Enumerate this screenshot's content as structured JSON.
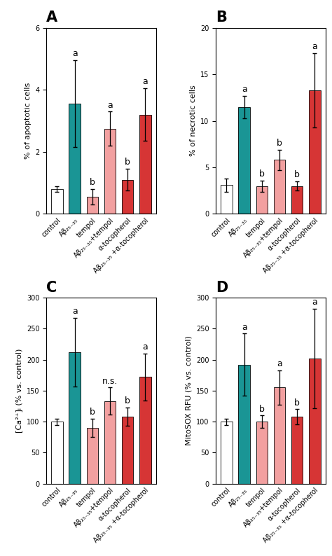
{
  "chart_data": [
    {
      "type": "bar",
      "title": "A",
      "ylabel": "% of apoptotic cells",
      "categories": [
        "control",
        "Aβ₂₅₋₃₅",
        "tempol",
        "Aβ₂₅₋₃₅+tempol",
        "α-tocopherol",
        "Aβ₂₅₋₃₅ +α-tocopherol"
      ],
      "values": [
        0.8,
        3.55,
        0.55,
        2.75,
        1.1,
        3.2
      ],
      "errors": [
        0.1,
        1.4,
        0.25,
        0.55,
        0.35,
        0.85
      ],
      "colors": [
        "#ffffff",
        "#1a9595",
        "#f2a0a0",
        "#f2a0a0",
        "#d63535",
        "#d63535"
      ],
      "annotations": [
        null,
        "a",
        "b",
        "a",
        "b",
        "a"
      ],
      "ylim": [
        0,
        6
      ],
      "yticks": [
        0,
        2,
        4,
        6
      ]
    },
    {
      "type": "bar",
      "title": "B",
      "ylabel": "% of necrotic cells",
      "categories": [
        "control",
        "Aβ₂₅₋₃₅",
        "tempol",
        "Aβ₂₅₋₃₅+tempol",
        "α-tocopherol",
        "Aβ₂₅₋₃₅ +α-tocopherol"
      ],
      "values": [
        3.1,
        11.5,
        3.0,
        5.8,
        3.0,
        13.3
      ],
      "errors": [
        0.7,
        1.2,
        0.6,
        1.1,
        0.5,
        4.0
      ],
      "colors": [
        "#ffffff",
        "#1a9595",
        "#f2a0a0",
        "#f2a0a0",
        "#d63535",
        "#d63535"
      ],
      "annotations": [
        null,
        "a",
        "b",
        "b",
        "b",
        "a"
      ],
      "ylim": [
        0,
        20
      ],
      "yticks": [
        0,
        5,
        10,
        15,
        20
      ]
    },
    {
      "type": "bar",
      "title": "C",
      "ylabel": "[Ca²⁺]ᵢ (% vs. control)",
      "categories": [
        "control",
        "Aβ₂₅₋₃₅",
        "tempol",
        "Aβ₂₅₋₃₅+tempol",
        "α-tocopherol",
        "Aβ₂₅₋₃₅ +α-tocopherol"
      ],
      "values": [
        100,
        212,
        90,
        133,
        108,
        172
      ],
      "errors": [
        5,
        55,
        15,
        22,
        15,
        38
      ],
      "colors": [
        "#ffffff",
        "#1a9595",
        "#f2a0a0",
        "#f2a0a0",
        "#d63535",
        "#d63535"
      ],
      "annotations": [
        null,
        "a",
        "b",
        "n.s.",
        "b",
        "a"
      ],
      "ylim": [
        0,
        300
      ],
      "yticks": [
        0,
        50,
        100,
        150,
        200,
        250,
        300
      ]
    },
    {
      "type": "bar",
      "title": "D",
      "ylabel": "MitoSOX RFU (% vs. control)",
      "categories": [
        "control",
        "Aβ₂₅₋₃₅",
        "tempol",
        "Aβ₂₅₋₃₅+tempol",
        "α-tocopherol",
        "Aβ₂₅₋₃₅ +α-tocopherol"
      ],
      "values": [
        100,
        192,
        100,
        155,
        108,
        202
      ],
      "errors": [
        5,
        50,
        10,
        28,
        12,
        80
      ],
      "colors": [
        "#ffffff",
        "#1a9595",
        "#f2a0a0",
        "#f2a0a0",
        "#d63535",
        "#d63535"
      ],
      "annotations": [
        null,
        "a",
        "b",
        "a",
        "b",
        "a"
      ],
      "ylim": [
        0,
        300
      ],
      "yticks": [
        0,
        50,
        100,
        150,
        200,
        250,
        300
      ]
    }
  ]
}
